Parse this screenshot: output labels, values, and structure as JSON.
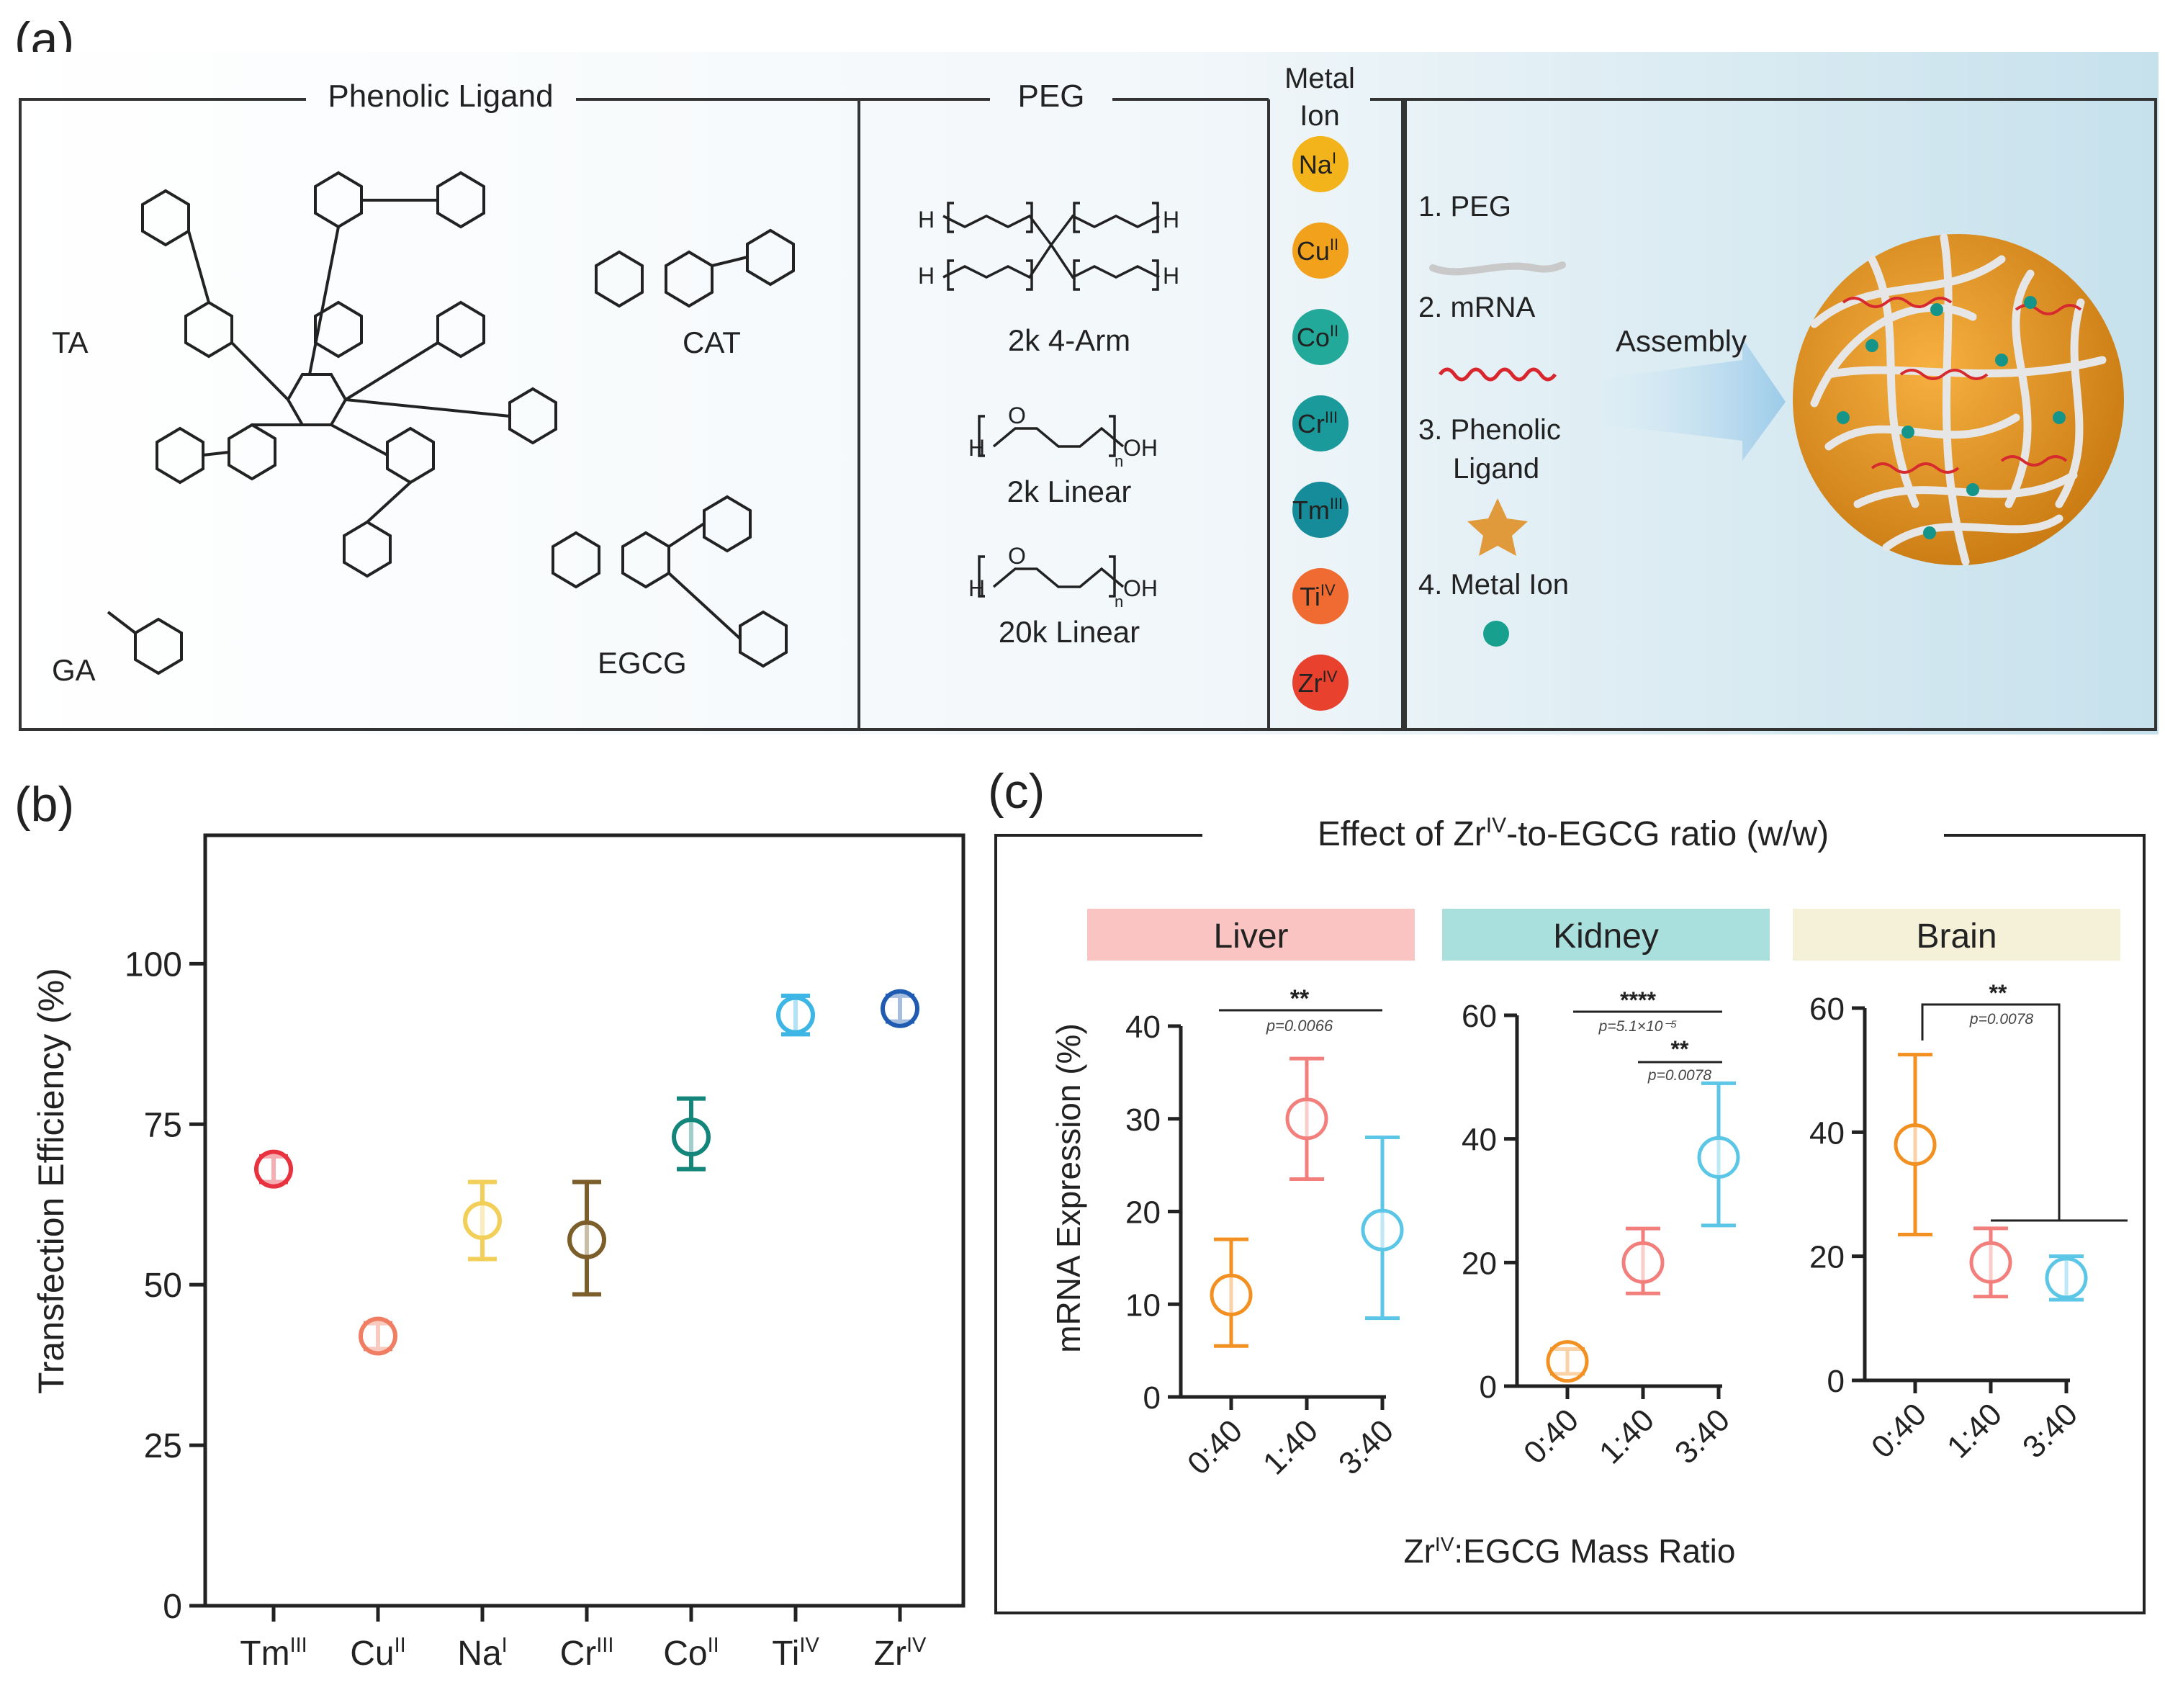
{
  "panel_labels": {
    "a": "(a)",
    "b": "(b)",
    "c": "(c)"
  },
  "panel_a": {
    "section_titles": {
      "phenolic": "Phenolic Ligand",
      "peg": "PEG",
      "metal": [
        "Metal",
        "Ion"
      ]
    },
    "ligands": [
      "TA",
      "CAT",
      "GA",
      "EGCG"
    ],
    "peg_items": [
      "2k 4-Arm",
      "2k Linear",
      "20k Linear"
    ],
    "peg_formula": {
      "h": "H",
      "oh": "OH",
      "o": "O",
      "n": "n"
    },
    "metal_ions": [
      {
        "symbol": "Na",
        "ox": "I",
        "color": "#f3b41b"
      },
      {
        "symbol": "Cu",
        "ox": "II",
        "color": "#f2a11d"
      },
      {
        "symbol": "Co",
        "ox": "II",
        "color": "#23a99a"
      },
      {
        "symbol": "Cr",
        "ox": "III",
        "color": "#1b9a9c"
      },
      {
        "symbol": "Tm",
        "ox": "III",
        "color": "#168c9a"
      },
      {
        "symbol": "Ti",
        "ox": "IV",
        "color": "#ef6b31"
      },
      {
        "symbol": "Zr",
        "ox": "IV",
        "color": "#e8422f"
      }
    ],
    "components": [
      "1. PEG",
      "2. mRNA",
      "3. Phenolic",
      "Ligand",
      "4. Metal Ion"
    ],
    "assembly_label": "Assembly"
  },
  "chart_data": [
    {
      "id": "b",
      "type": "scatter",
      "title": "",
      "ylabel": "Transfection Efficiency (%)",
      "xlabel": "",
      "ylim": [
        0,
        120
      ],
      "yticks": [
        0,
        25,
        50,
        75,
        100
      ],
      "categories": [
        {
          "symbol": "Tm",
          "ox": "III"
        },
        {
          "symbol": "Cu",
          "ox": "II"
        },
        {
          "symbol": "Na",
          "ox": "I"
        },
        {
          "symbol": "Cr",
          "ox": "III"
        },
        {
          "symbol": "Co",
          "ox": "II"
        },
        {
          "symbol": "Ti",
          "ox": "IV"
        },
        {
          "symbol": "Zr",
          "ox": "IV"
        }
      ],
      "points": [
        {
          "mean": 68,
          "low": 66,
          "high": 70,
          "color": "#e8323f"
        },
        {
          "mean": 42,
          "low": 40,
          "high": 44,
          "color": "#f07e63"
        },
        {
          "mean": 60,
          "low": 54,
          "high": 66,
          "color": "#f2cf58"
        },
        {
          "mean": 57,
          "low": 48.5,
          "high": 66,
          "color": "#7c5e2a"
        },
        {
          "mean": 73,
          "low": 68,
          "high": 79,
          "color": "#13857a"
        },
        {
          "mean": 92,
          "low": 89,
          "high": 95,
          "color": "#3db6e6"
        },
        {
          "mean": 93,
          "low": 91,
          "high": 95,
          "color": "#1f5bb0"
        }
      ]
    },
    {
      "id": "c",
      "type": "scatter",
      "title": {
        "pre": "Effect of Zr",
        "sup": "IV",
        "post": "-to-EGCG ratio (w/w)"
      },
      "ylabel": "mRNA Expression (%)",
      "xlabel": {
        "pre": "Zr",
        "sup": "IV",
        "post": ":EGCG Mass Ratio"
      },
      "ratios": [
        "0:40",
        "1:40",
        "3:40"
      ],
      "colors": [
        "#f29022",
        "#f27f7c",
        "#5cc6e6"
      ],
      "facets": [
        {
          "name": "Liver",
          "header_color": "#f9c4c1",
          "ylim": [
            0,
            40
          ],
          "yticks": [
            0,
            10,
            20,
            30,
            40
          ],
          "points": [
            {
              "mean": 11,
              "low": 5.5,
              "high": 17
            },
            {
              "mean": 30,
              "low": 23.5,
              "high": 36.5
            },
            {
              "mean": 18,
              "low": 8.5,
              "high": 28
            }
          ],
          "significance": [
            {
              "stars": "**",
              "p": "p=0.0066"
            }
          ]
        },
        {
          "name": "Kidney",
          "header_color": "#a9e0de",
          "ylim": [
            0,
            60
          ],
          "yticks": [
            0,
            20,
            40,
            60
          ],
          "points": [
            {
              "mean": 4,
              "low": 2,
              "high": 6
            },
            {
              "mean": 20,
              "low": 15,
              "high": 25.5
            },
            {
              "mean": 37,
              "low": 26,
              "high": 49
            }
          ],
          "significance": [
            {
              "stars": "****",
              "p": "p=5.1×10⁻⁵"
            },
            {
              "stars": "**",
              "p": "p=0.0078"
            }
          ]
        },
        {
          "name": "Brain",
          "header_color": "#f5f1d8",
          "ylim": [
            0,
            60
          ],
          "yticks": [
            0,
            20,
            40,
            60
          ],
          "points": [
            {
              "mean": 38,
              "low": 23.5,
              "high": 52.5
            },
            {
              "mean": 19,
              "low": 13.5,
              "high": 24.5
            },
            {
              "mean": 16.5,
              "low": 13,
              "high": 20
            }
          ],
          "significance": [
            {
              "stars": "**",
              "p": "p=0.0078"
            }
          ]
        }
      ]
    }
  ]
}
